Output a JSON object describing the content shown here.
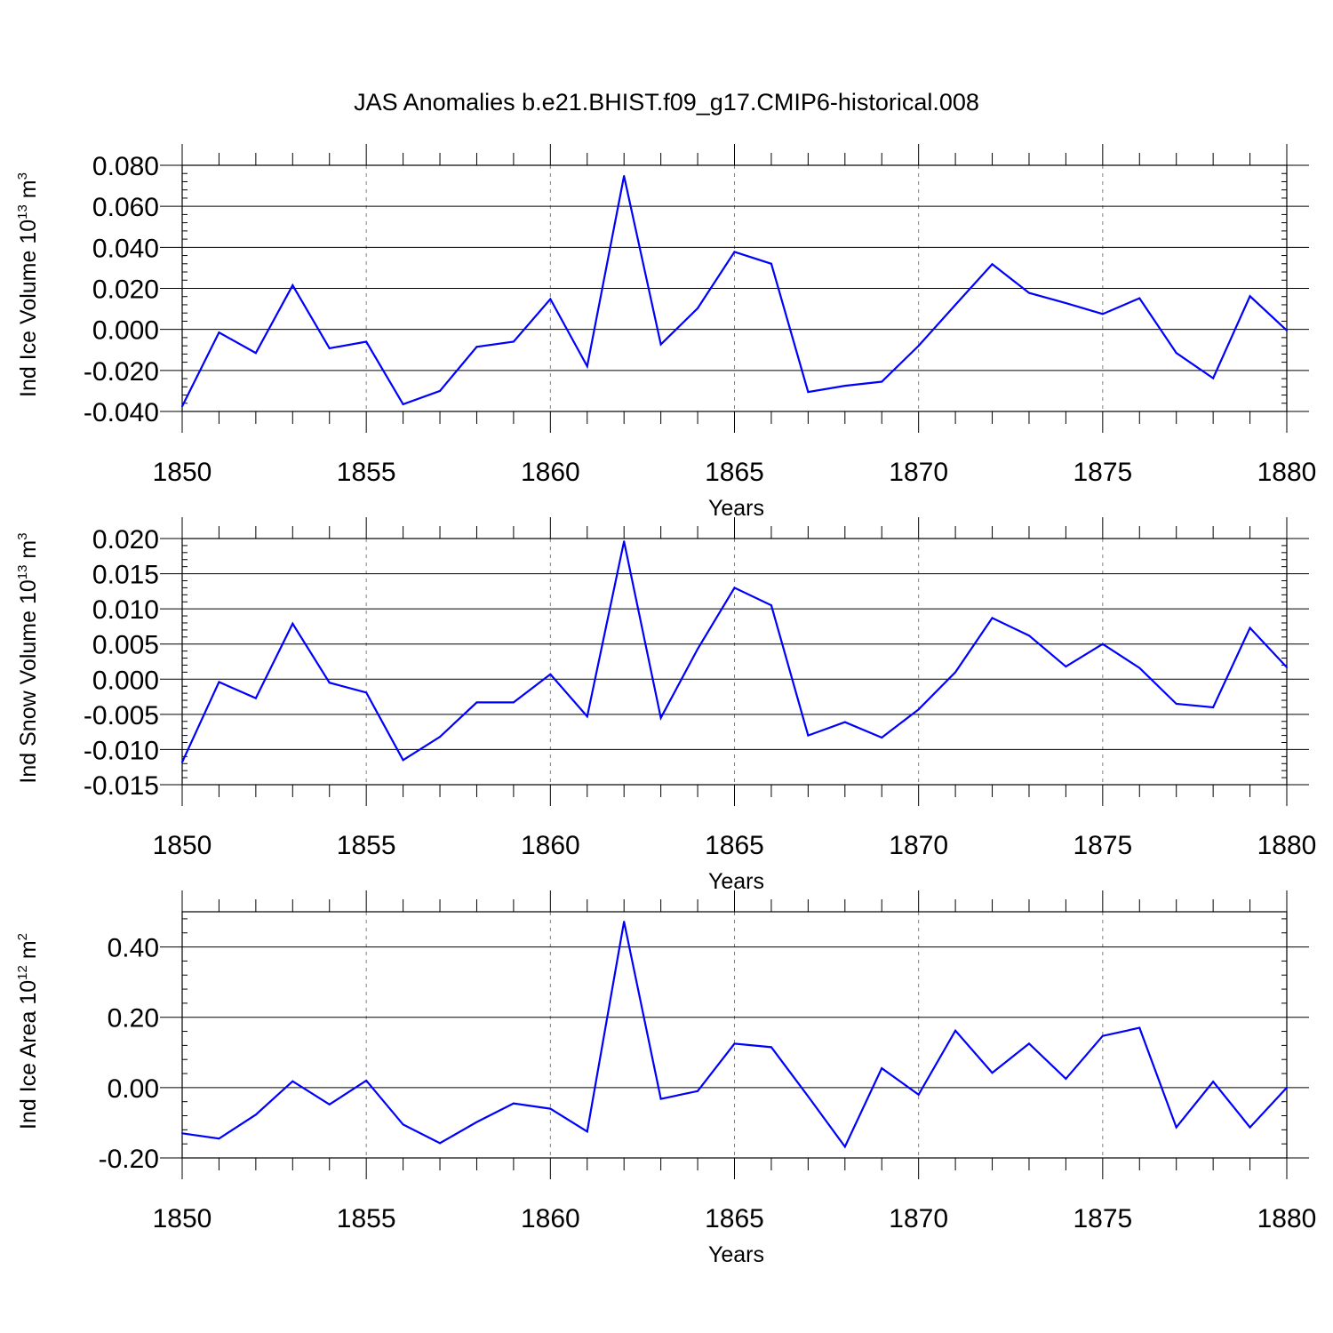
{
  "title": "JAS Anomalies b.e21.BHIST.f09_g17.CMIP6-historical.008",
  "colors": {
    "line": "#0000ff",
    "axis": "#000000",
    "grid": "#7f7f7f"
  },
  "chart_data": [
    {
      "type": "line",
      "ylabel": {
        "prefix": "Ind Ice Volume 10",
        "exponent": "13",
        "unit": " m",
        "unit_exponent": "3"
      },
      "xlabel": "Years",
      "xlim": [
        1850,
        1880
      ],
      "ylim": [
        -0.04,
        0.08
      ],
      "x_major_ticks": [
        1850,
        1855,
        1860,
        1865,
        1870,
        1875,
        1880
      ],
      "x_tick_labels": [
        "1850",
        "1855",
        "1860",
        "1865",
        "1870",
        "1875",
        "1880"
      ],
      "y_major_ticks": [
        -0.04,
        -0.02,
        0.0,
        0.02,
        0.04,
        0.06,
        0.08
      ],
      "y_tick_labels": [
        "-0.040",
        "-0.020",
        "0.000",
        "0.020",
        "0.040",
        "0.060",
        "0.080"
      ],
      "vertical_grid": [
        1855,
        1860,
        1865,
        1870,
        1875
      ],
      "x": [
        1850,
        1851,
        1852,
        1853,
        1854,
        1855,
        1856,
        1857,
        1858,
        1859,
        1860,
        1861,
        1862,
        1863,
        1864,
        1865,
        1866,
        1867,
        1868,
        1869,
        1870,
        1871,
        1872,
        1873,
        1874,
        1875,
        1876,
        1877,
        1878,
        1879,
        1880
      ],
      "values": [
        -0.0375,
        -0.0015,
        -0.0115,
        0.0215,
        -0.0092,
        -0.006,
        -0.0365,
        -0.03,
        -0.0085,
        -0.006,
        0.0148,
        -0.018,
        0.0748,
        -0.0073,
        0.0103,
        0.0378,
        0.032,
        -0.0305,
        -0.0275,
        -0.0255,
        -0.008,
        0.012,
        0.0318,
        0.0178,
        0.0128,
        0.0075,
        0.0152,
        -0.0115,
        -0.0238,
        0.0162,
        -0.0005
      ]
    },
    {
      "type": "line",
      "ylabel": {
        "prefix": "Ind Snow Volume 10",
        "exponent": "13",
        "unit": " m",
        "unit_exponent": "3"
      },
      "xlabel": "Years",
      "xlim": [
        1850,
        1880
      ],
      "ylim": [
        -0.015,
        0.02
      ],
      "x_major_ticks": [
        1850,
        1855,
        1860,
        1865,
        1870,
        1875,
        1880
      ],
      "x_tick_labels": [
        "1850",
        "1855",
        "1860",
        "1865",
        "1870",
        "1875",
        "1880"
      ],
      "y_major_ticks": [
        -0.015,
        -0.01,
        -0.005,
        0.0,
        0.005,
        0.01,
        0.015,
        0.02
      ],
      "y_tick_labels": [
        "-0.015",
        "-0.010",
        "-0.005",
        "0.000",
        "0.005",
        "0.010",
        "0.015",
        "0.020"
      ],
      "vertical_grid": [
        1855,
        1860,
        1865,
        1870,
        1875
      ],
      "x": [
        1850,
        1851,
        1852,
        1853,
        1854,
        1855,
        1856,
        1857,
        1858,
        1859,
        1860,
        1861,
        1862,
        1863,
        1864,
        1865,
        1866,
        1867,
        1868,
        1869,
        1870,
        1871,
        1872,
        1873,
        1874,
        1875,
        1876,
        1877,
        1878,
        1879,
        1880
      ],
      "values": [
        -0.0118,
        -0.0004,
        -0.0027,
        0.0079,
        -0.0005,
        -0.0019,
        -0.0115,
        -0.0082,
        -0.0033,
        -0.0033,
        0.0007,
        -0.0053,
        0.0196,
        -0.0055,
        0.0043,
        0.013,
        0.0105,
        -0.008,
        -0.0061,
        -0.0083,
        -0.0043,
        0.001,
        0.0087,
        0.0062,
        0.0018,
        0.005,
        0.0016,
        -0.0035,
        -0.004,
        0.0073,
        0.0017
      ]
    },
    {
      "type": "line",
      "ylabel": {
        "prefix": "Ind Ice Area 10",
        "exponent": "12",
        "unit": " m",
        "unit_exponent": "2"
      },
      "xlabel": "Years",
      "xlim": [
        1850,
        1880
      ],
      "ylim": [
        -0.2,
        0.5
      ],
      "x_major_ticks": [
        1850,
        1855,
        1860,
        1865,
        1870,
        1875,
        1880
      ],
      "x_tick_labels": [
        "1850",
        "1855",
        "1860",
        "1865",
        "1870",
        "1875",
        "1880"
      ],
      "y_major_ticks": [
        -0.2,
        0.0,
        0.2,
        0.4
      ],
      "y_tick_labels": [
        "-0.20",
        "0.00",
        "0.20",
        "0.40"
      ],
      "vertical_grid": [
        1855,
        1860,
        1865,
        1870,
        1875
      ],
      "x": [
        1850,
        1851,
        1852,
        1853,
        1854,
        1855,
        1856,
        1857,
        1858,
        1859,
        1860,
        1861,
        1862,
        1863,
        1864,
        1865,
        1866,
        1867,
        1868,
        1869,
        1870,
        1871,
        1872,
        1873,
        1874,
        1875,
        1876,
        1877,
        1878,
        1879,
        1880
      ],
      "values": [
        -0.13,
        -0.145,
        -0.077,
        0.018,
        -0.048,
        0.02,
        -0.105,
        -0.158,
        -0.098,
        -0.045,
        -0.06,
        -0.125,
        0.472,
        -0.032,
        -0.01,
        0.125,
        0.115,
        -0.025,
        -0.168,
        0.055,
        -0.02,
        0.162,
        0.042,
        0.125,
        0.025,
        0.147,
        0.17,
        -0.113,
        0.017,
        -0.113,
        0.0
      ]
    }
  ]
}
